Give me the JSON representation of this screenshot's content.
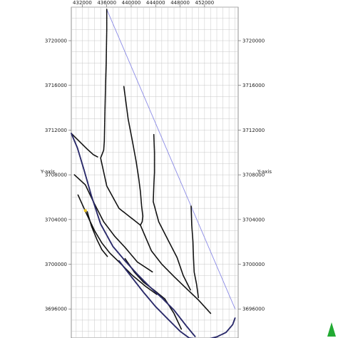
{
  "chart_data": {
    "type": "line",
    "title": "",
    "xlabel": "",
    "ylabel": "Y-axis",
    "right_ylabel": "Y-axis",
    "grid": true,
    "xlim": [
      430200,
      457500
    ],
    "ylim": [
      3693400,
      3723000
    ],
    "x_ticks": [
      432000,
      436000,
      440000,
      444000,
      448000,
      452000
    ],
    "x_tick_labels": [
      "432000",
      "436000",
      "440000",
      "444000",
      "448000",
      "452000"
    ],
    "y_ticks": [
      3696000,
      3700000,
      3704000,
      3708000,
      3712000,
      3716000,
      3720000
    ],
    "y_tick_labels": [
      "3696000",
      "3700000",
      "3704000",
      "3708000",
      "3712000",
      "3716000",
      "3720000"
    ],
    "outline_color": "#8a8ae6",
    "stream_color": "#111111",
    "edge_color": "#2a2a6a",
    "outlet_color": "#e8c020",
    "series": [
      {
        "role": "boundary",
        "x": [
          436000,
          457000
        ],
        "y": [
          3722800,
          3696000
        ]
      },
      {
        "role": "stream",
        "x": [
          436000,
          436000,
          435900,
          435800,
          435700,
          435600,
          435500,
          435000,
          436000,
          438000,
          441500,
          443300,
          445000,
          447000,
          448500,
          451000,
          453000
        ],
        "y": [
          3722800,
          3721000,
          3718000,
          3716000,
          3713500,
          3711000,
          3710200,
          3709500,
          3707000,
          3705000,
          3703500,
          3701200,
          3700000,
          3698900,
          3698100,
          3696800,
          3695600
        ]
      },
      {
        "role": "stream",
        "x": [
          438800,
          439500,
          440200,
          440800,
          441200,
          441500,
          441700,
          441900,
          441800,
          441500
        ],
        "y": [
          3715900,
          3713000,
          3711000,
          3709200,
          3707800,
          3706500,
          3705200,
          3704300,
          3703800,
          3703500
        ]
      },
      {
        "role": "stream",
        "x": [
          443700,
          443800,
          443800,
          443700,
          443600,
          444500,
          446000,
          447500,
          448500,
          449700
        ],
        "y": [
          3711600,
          3710000,
          3708200,
          3707000,
          3705600,
          3703800,
          3702200,
          3700600,
          3699000,
          3697700
        ]
      },
      {
        "role": "stream",
        "x": [
          449800,
          449900,
          450100,
          450200,
          450300,
          450700,
          451000
        ],
        "y": [
          3705200,
          3703500,
          3702000,
          3700500,
          3699300,
          3698200,
          3697000
        ]
      },
      {
        "role": "stream",
        "x": [
          430200,
          431500,
          432800,
          433800,
          434500
        ],
        "y": [
          3711700,
          3711000,
          3710300,
          3709800,
          3709600
        ]
      },
      {
        "role": "stream",
        "x": [
          430700,
          432500,
          433800,
          435500,
          437300,
          439000,
          441000,
          443500
        ],
        "y": [
          3708000,
          3707100,
          3705600,
          3703800,
          3702500,
          3701500,
          3700200,
          3699300
        ]
      },
      {
        "role": "stream",
        "x": [
          431300,
          432700,
          434000,
          435200,
          436500,
          438000,
          440200,
          442400,
          444200
        ],
        "y": [
          3706200,
          3704500,
          3703000,
          3701900,
          3701000,
          3700200,
          3699000,
          3698000,
          3697300
        ]
      },
      {
        "role": "stream",
        "x": [
          432800,
          433500,
          434400,
          435200,
          436100
        ],
        "y": [
          3704700,
          3703400,
          3702200,
          3701300,
          3700700
        ]
      },
      {
        "role": "stream",
        "x": [
          439000,
          440500,
          442000,
          443700,
          445500,
          447000,
          448200
        ],
        "y": [
          3700500,
          3699300,
          3698400,
          3697700,
          3696900,
          3695600,
          3694200
        ]
      },
      {
        "role": "edge",
        "x": [
          430200,
          431200,
          432300,
          433500,
          435000,
          437000,
          439000,
          441000,
          443000,
          445000,
          447000,
          449000,
          450500
        ],
        "y": [
          3711700,
          3710400,
          3708400,
          3706100,
          3703600,
          3701600,
          3700300,
          3699100,
          3698000,
          3697000,
          3695900,
          3694500,
          3693500
        ]
      },
      {
        "role": "edge",
        "x": [
          438000,
          440000,
          442000,
          444000,
          446000,
          448000,
          449500
        ],
        "y": [
          3700300,
          3698900,
          3697500,
          3696200,
          3695100,
          3694000,
          3693400
        ]
      },
      {
        "role": "edge",
        "x": [
          449500,
          451000,
          452500,
          454000,
          455500,
          456600,
          457000
        ],
        "y": [
          3693400,
          3693300,
          3693300,
          3693500,
          3693900,
          3694600,
          3695200
        ]
      }
    ],
    "points": [
      {
        "role": "outlet",
        "x": 432500,
        "y": 3704800
      }
    ]
  }
}
